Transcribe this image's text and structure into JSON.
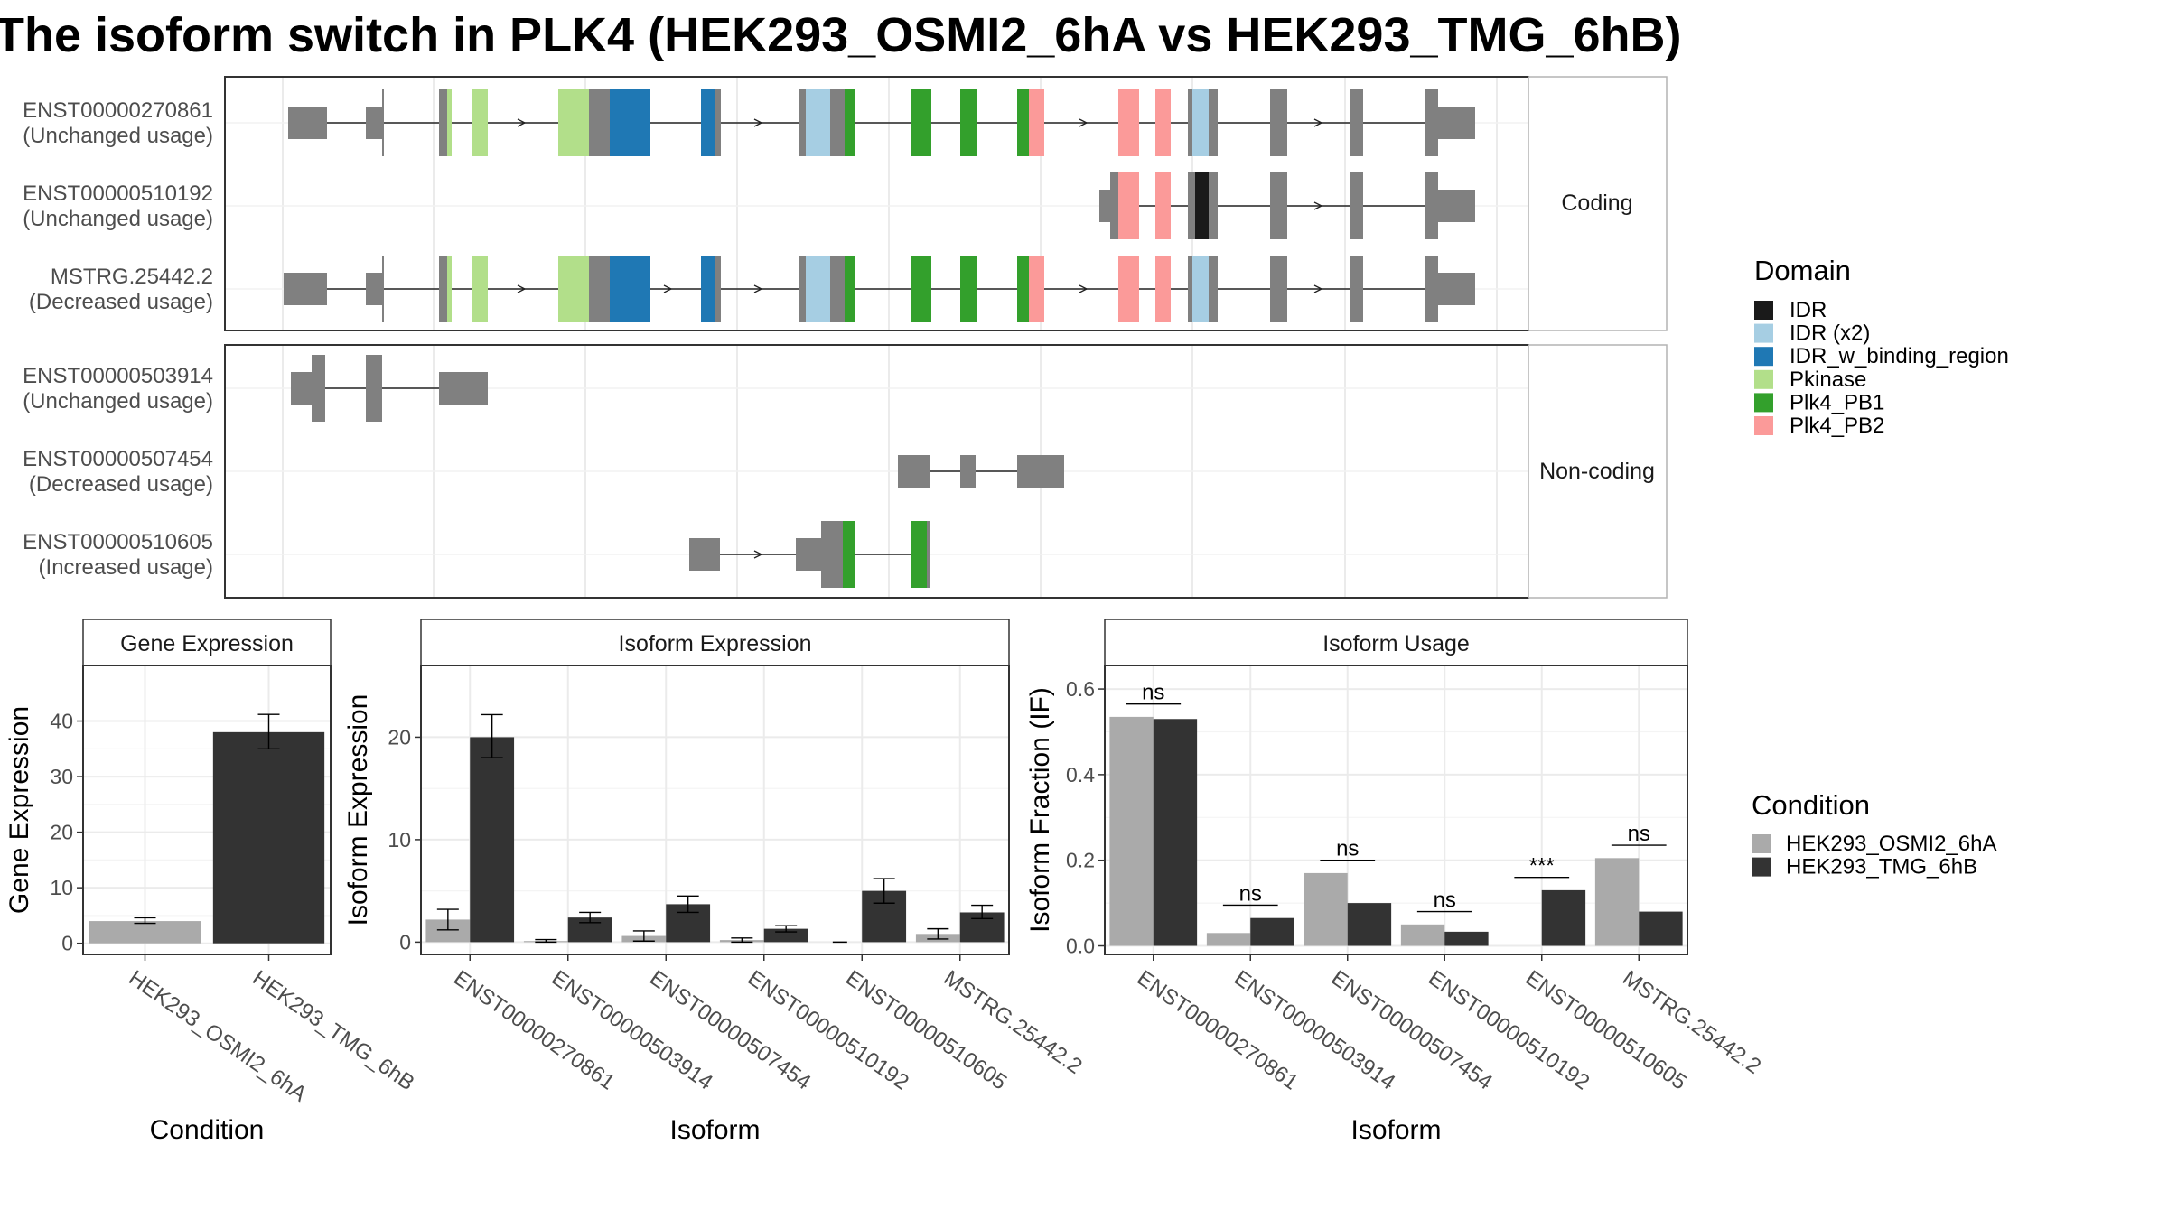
{
  "title": "The isoform switch in PLK4 (HEK293_OSMI2_6hA vs HEK293_TMG_6hB)",
  "colors": {
    "IDR": "#1a1a1a",
    "IDR (x2)": "#a6cee3",
    "IDR_w_binding_region": "#1f78b4",
    "Pkinase": "#b2df8a",
    "Plk4_PB1": "#33a02c",
    "Plk4_PB2": "#fb9a99",
    "gene": "#808080",
    "cond1": "#aaaaaa",
    "cond2": "#333333",
    "panel_border": "#333333",
    "strip_border": "#b3b3b3",
    "grid": "#ebebeb"
  },
  "structure": {
    "facets": [
      {
        "label": "Coding",
        "transcripts": [
          {
            "id": "ENST00000270861",
            "usage": "(Unchanged usage)"
          },
          {
            "id": "ENST00000510192",
            "usage": "(Unchanged usage)"
          },
          {
            "id": "MSTRG.25442.2",
            "usage": "(Decreased usage)"
          }
        ]
      },
      {
        "label": "Non-coding",
        "transcripts": [
          {
            "id": "ENST00000503914",
            "usage": "(Unchanged usage)"
          },
          {
            "id": "ENST00000507454",
            "usage": "(Decreased usage)"
          },
          {
            "id": "ENST00000510605",
            "usage": "(Increased usage)"
          }
        ]
      }
    ]
  },
  "legends": {
    "domain": {
      "title": "Domain",
      "items": [
        "IDR",
        "IDR (x2)",
        "IDR_w_binding_region",
        "Pkinase",
        "Plk4_PB1",
        "Plk4_PB2"
      ]
    },
    "condition": {
      "title": "Condition",
      "items": [
        "HEK293_OSMI2_6hA",
        "HEK293_TMG_6hB"
      ]
    }
  },
  "chart_data": [
    {
      "type": "bar",
      "title": "Gene Expression",
      "xlabel": "Condition",
      "ylabel": "Gene Expression",
      "categories": [
        "HEK293_OSMI2_6hA",
        "HEK293_TMG_6hB"
      ],
      "values": [
        4.0,
        38.0
      ],
      "errors": [
        [
          3.6,
          4.6
        ],
        [
          35.0,
          41.2
        ]
      ],
      "yticks": [
        0,
        10,
        20,
        30,
        40
      ],
      "ylim": [
        -2,
        50
      ]
    },
    {
      "type": "bar",
      "title": "Isoform Expression",
      "xlabel": "Isoform",
      "ylabel": "Isoform Expression",
      "categories": [
        "ENST00000270861",
        "ENST00000503914",
        "ENST00000507454",
        "ENST00000510192",
        "ENST00000510605",
        "MSTRG.25442.2"
      ],
      "series": [
        {
          "name": "HEK293_OSMI2_6hA",
          "values": [
            2.2,
            0.1,
            0.6,
            0.2,
            0.0,
            0.8
          ],
          "errors": [
            [
              1.2,
              3.2
            ],
            [
              0.0,
              0.25
            ],
            [
              0.1,
              1.1
            ],
            [
              0.0,
              0.4
            ],
            [
              0.0,
              0.0
            ],
            [
              0.3,
              1.3
            ]
          ]
        },
        {
          "name": "HEK293_TMG_6hB",
          "values": [
            20.0,
            2.4,
            3.7,
            1.3,
            5.0,
            2.9
          ],
          "errors": [
            [
              18.0,
              22.2
            ],
            [
              1.9,
              2.9
            ],
            [
              2.9,
              4.5
            ],
            [
              1.0,
              1.6
            ],
            [
              3.8,
              6.2
            ],
            [
              2.3,
              3.6
            ]
          ]
        }
      ],
      "yticks": [
        0,
        10,
        20
      ],
      "ylim": [
        -1.2,
        27
      ]
    },
    {
      "type": "bar",
      "title": "Isoform Usage",
      "xlabel": "Isoform",
      "ylabel": "Isoform Fraction (IF)",
      "categories": [
        "ENST00000270861",
        "ENST00000503914",
        "ENST00000507454",
        "ENST00000510192",
        "ENST00000510605",
        "MSTRG.25442.2"
      ],
      "series": [
        {
          "name": "HEK293_OSMI2_6hA",
          "values": [
            0.535,
            0.03,
            0.17,
            0.05,
            0.0,
            0.205
          ]
        },
        {
          "name": "HEK293_TMG_6hB",
          "values": [
            0.53,
            0.065,
            0.1,
            0.033,
            0.13,
            0.08
          ]
        }
      ],
      "significance": [
        "ns",
        "ns",
        "ns",
        "ns",
        "***",
        "ns"
      ],
      "yticks": [
        0.0,
        0.2,
        0.4,
        0.6
      ],
      "ylim": [
        -0.02,
        0.655
      ]
    }
  ]
}
